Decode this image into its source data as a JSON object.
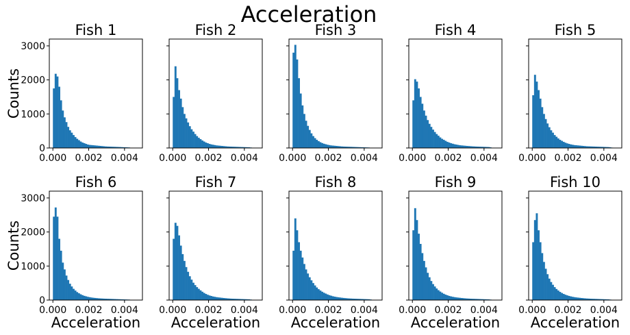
{
  "figure": {
    "suptitle": "Acceleration",
    "bar_color": "#1f77b4"
  },
  "chart_data": {
    "type": "bar",
    "layout": "2x5 grid of histograms with shared y axis",
    "title": "Acceleration",
    "xlabel": "Acceleration",
    "ylabel": "Counts",
    "xlim": [
      -0.0002,
      0.005
    ],
    "ylim": [
      0,
      3200
    ],
    "xticks": [
      0.0,
      0.002,
      0.004
    ],
    "xtick_labels": [
      "0.000",
      "0.002",
      "0.004"
    ],
    "yticks": [
      0,
      1000,
      2000,
      3000
    ],
    "ytick_labels": [
      "0",
      "1000",
      "2000",
      "3000"
    ],
    "bin_start": 0.0,
    "bin_width": 0.0001,
    "grid": false,
    "panels": [
      {
        "title": "Fish 1",
        "values": [
          1750,
          2180,
          2100,
          1800,
          1400,
          1100,
          900,
          760,
          620,
          520,
          450,
          380,
          320,
          270,
          230,
          190,
          160,
          140,
          120,
          100,
          90,
          85,
          80,
          75,
          70,
          65,
          60,
          55,
          50,
          45,
          42,
          40,
          38,
          36,
          34,
          32,
          30,
          28,
          25,
          22,
          20,
          18,
          15,
          10,
          6
        ]
      },
      {
        "title": "Fish 2",
        "values": [
          1500,
          2400,
          2050,
          1700,
          1450,
          1200,
          1000,
          870,
          750,
          640,
          550,
          480,
          410,
          350,
          300,
          260,
          220,
          190,
          160,
          140,
          120,
          105,
          95,
          85,
          75,
          70,
          65,
          60,
          55,
          50,
          45,
          42,
          40,
          38,
          36,
          34,
          32,
          30,
          28,
          26,
          24,
          22,
          20,
          15,
          10
        ]
      },
      {
        "title": "Fish 3",
        "values": [
          2800,
          3030,
          2600,
          2050,
          1600,
          1250,
          1000,
          800,
          650,
          530,
          430,
          350,
          290,
          240,
          200,
          170,
          145,
          125,
          110,
          95,
          85,
          75,
          70,
          65,
          60,
          55,
          50,
          45,
          42,
          40,
          38,
          36,
          34,
          32,
          30,
          28,
          26,
          24,
          22,
          20,
          18,
          16,
          14,
          10,
          6
        ]
      },
      {
        "title": "Fish 4",
        "values": [
          1400,
          2020,
          1950,
          1750,
          1500,
          1300,
          1100,
          950,
          820,
          710,
          620,
          540,
          470,
          410,
          360,
          310,
          270,
          240,
          210,
          180,
          160,
          140,
          125,
          110,
          100,
          90,
          80,
          75,
          70,
          65,
          60,
          56,
          52,
          48,
          45,
          42,
          40,
          38,
          36,
          34,
          32,
          30,
          28,
          20,
          10
        ]
      },
      {
        "title": "Fish 5",
        "values": [
          1550,
          2150,
          1950,
          1700,
          1450,
          1200,
          1000,
          850,
          720,
          610,
          520,
          450,
          380,
          330,
          280,
          240,
          210,
          180,
          155,
          135,
          120,
          105,
          95,
          85,
          80,
          75,
          70,
          65,
          60,
          55,
          50,
          48,
          46,
          44,
          42,
          40,
          38,
          36,
          34,
          32,
          30,
          28,
          26,
          20,
          12
        ]
      },
      {
        "title": "Fish 6",
        "values": [
          2450,
          2720,
          2450,
          1800,
          1450,
          1100,
          900,
          720,
          590,
          480,
          400,
          330,
          280,
          235,
          200,
          170,
          145,
          125,
          110,
          95,
          85,
          75,
          68,
          62,
          57,
          52,
          48,
          45,
          42,
          40,
          38,
          36,
          34,
          32,
          30,
          28,
          26,
          24,
          22,
          20,
          18,
          16,
          14,
          10,
          6
        ]
      },
      {
        "title": "Fish 7",
        "values": [
          1800,
          2270,
          2180,
          1900,
          1600,
          1350,
          1150,
          970,
          830,
          700,
          600,
          510,
          440,
          380,
          330,
          285,
          245,
          210,
          180,
          155,
          135,
          120,
          105,
          95,
          85,
          78,
          72,
          66,
          60,
          55,
          50,
          46,
          42,
          40,
          38,
          36,
          34,
          32,
          30,
          28,
          26,
          24,
          22,
          16,
          10
        ]
      },
      {
        "title": "Fish 8",
        "values": [
          1450,
          2400,
          2050,
          1700,
          1450,
          1250,
          1060,
          900,
          780,
          670,
          580,
          500,
          430,
          370,
          320,
          280,
          245,
          215,
          190,
          165,
          145,
          128,
          112,
          100,
          90,
          82,
          75,
          68,
          62,
          57,
          52,
          48,
          45,
          42,
          40,
          38,
          36,
          34,
          32,
          30,
          28,
          26,
          24,
          18,
          10
        ]
      },
      {
        "title": "Fish 9",
        "values": [
          2050,
          2700,
          2350,
          1950,
          1650,
          1380,
          1150,
          960,
          800,
          670,
          560,
          470,
          400,
          340,
          290,
          250,
          215,
          185,
          160,
          140,
          122,
          108,
          96,
          86,
          78,
          72,
          66,
          60,
          55,
          50,
          46,
          43,
          40,
          38,
          36,
          34,
          32,
          30,
          28,
          26,
          24,
          22,
          20,
          15,
          8
        ]
      },
      {
        "title": "Fish 10",
        "values": [
          1700,
          2350,
          2550,
          2050,
          1700,
          1380,
          1120,
          920,
          760,
          630,
          530,
          450,
          380,
          325,
          280,
          240,
          208,
          180,
          157,
          138,
          122,
          108,
          96,
          86,
          78,
          72,
          66,
          60,
          55,
          50,
          46,
          43,
          40,
          38,
          36,
          34,
          32,
          30,
          28,
          26,
          24,
          22,
          20,
          15,
          8
        ]
      }
    ]
  }
}
